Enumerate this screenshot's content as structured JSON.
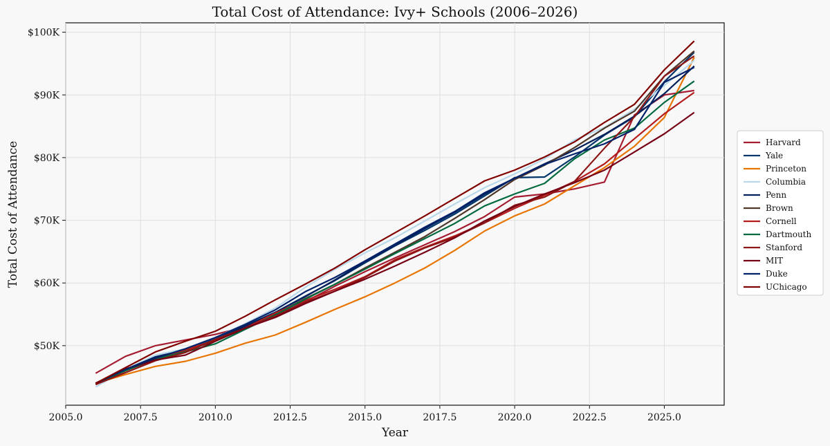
{
  "chart_data": {
    "type": "line",
    "title": "Total Cost of Attendance: Ivy+ Schools (2006–2026)",
    "xlabel": "Year",
    "ylabel": "Total Cost of Attendance",
    "xlim": [
      2005,
      2027
    ],
    "ylim": [
      40500,
      101500
    ],
    "x_ticks": [
      2005,
      2007.5,
      2010,
      2012.5,
      2015,
      2017.5,
      2020,
      2022.5,
      2025
    ],
    "x_tick_labels": [
      "2005.0",
      "2007.5",
      "2010.0",
      "2012.5",
      "2015.0",
      "2017.5",
      "2020.0",
      "2022.5",
      "2025.0"
    ],
    "y_ticks": [
      50000,
      60000,
      70000,
      80000,
      90000,
      100000
    ],
    "y_tick_labels": [
      "$50K",
      "$60K",
      "$70K",
      "$80K",
      "$90K",
      "$100K"
    ],
    "grid": true,
    "legend_position": "right",
    "x": [
      2006,
      2007,
      2008,
      2009,
      2010,
      2011,
      2012,
      2013,
      2014,
      2015,
      2016,
      2017,
      2018,
      2019,
      2020,
      2021,
      2022,
      2023,
      2024,
      2025,
      2026
    ],
    "series": [
      {
        "name": "Harvard",
        "color": "#a51c30",
        "values": [
          45600,
          48300,
          50000,
          50900,
          51800,
          53000,
          54800,
          57000,
          59500,
          61800,
          64000,
          66100,
          68200,
          70600,
          73700,
          74200,
          75000,
          76100,
          86800,
          90000,
          90700
        ]
      },
      {
        "name": "Yale",
        "color": "#00356b",
        "values": [
          44000,
          46200,
          48200,
          49400,
          51200,
          53200,
          55300,
          57900,
          60400,
          63200,
          65900,
          68400,
          71000,
          73900,
          76800,
          76900,
          80100,
          83600,
          86500,
          92100,
          96800
        ]
      },
      {
        "name": "Princeton",
        "color": "#e77500",
        "values": [
          44000,
          45400,
          46700,
          47500,
          48800,
          50400,
          51700,
          53700,
          55800,
          57800,
          60000,
          62400,
          65200,
          68300,
          70700,
          72600,
          75500,
          78400,
          81800,
          86400,
          96000
        ]
      },
      {
        "name": "Columbia",
        "color": "#b9d9eb",
        "values": [
          43400,
          46200,
          48500,
          49500,
          51300,
          53500,
          56000,
          59300,
          62200,
          64800,
          67200,
          69900,
          72600,
          75200,
          77400,
          79800,
          82800,
          84800,
          87700,
          91500,
          95500
        ]
      },
      {
        "name": "Penn",
        "color": "#011f5b",
        "values": [
          44000,
          46200,
          48200,
          49300,
          50900,
          53100,
          55300,
          57800,
          60500,
          63400,
          66000,
          68700,
          71300,
          74200,
          76700,
          79000,
          81200,
          83700,
          86600,
          90200,
          94600
        ]
      },
      {
        "name": "Brown",
        "color": "#4e3629",
        "values": [
          44000,
          46000,
          47800,
          49100,
          50800,
          52700,
          55000,
          57500,
          59800,
          62400,
          64900,
          67400,
          70300,
          73300,
          76500,
          78800,
          81600,
          84700,
          87400,
          93000,
          97000
        ]
      },
      {
        "name": "Cornell",
        "color": "#b31b1b",
        "values": [
          43800,
          46000,
          47900,
          49300,
          50900,
          52800,
          55200,
          57200,
          59000,
          61000,
          63700,
          65700,
          67500,
          69600,
          71900,
          74000,
          76200,
          79000,
          83000,
          87000,
          90400
        ]
      },
      {
        "name": "Dartmouth",
        "color": "#00693e",
        "values": [
          44000,
          46000,
          47900,
          49000,
          50300,
          52600,
          54900,
          57400,
          59800,
          62200,
          64700,
          67100,
          69500,
          72300,
          74200,
          75900,
          79800,
          82800,
          84700,
          88800,
          92200
        ]
      },
      {
        "name": "Stanford",
        "color": "#8c1515",
        "values": [
          43800,
          45700,
          47600,
          48900,
          51000,
          52800,
          54700,
          56900,
          58700,
          60900,
          63500,
          65600,
          67300,
          69600,
          72400,
          73700,
          76200,
          81500,
          86500,
          93000,
          96200
        ]
      },
      {
        "name": "MIT",
        "color": "#750014",
        "values": [
          44000,
          46300,
          47700,
          48500,
          50700,
          52800,
          54500,
          56700,
          58700,
          60600,
          62700,
          64900,
          67200,
          69900,
          72200,
          74200,
          76000,
          78000,
          80900,
          83800,
          87200
        ]
      },
      {
        "name": "Duke",
        "color": "#012169",
        "values": [
          44000,
          46200,
          48000,
          49500,
          51300,
          53400,
          55700,
          58600,
          60900,
          63500,
          66200,
          68900,
          71400,
          74400,
          76700,
          78900,
          80600,
          82200,
          84500,
          92000,
          94400
        ]
      },
      {
        "name": "UChicago",
        "color": "#800000",
        "values": [
          44000,
          46500,
          49000,
          50700,
          52300,
          54700,
          57300,
          59800,
          62400,
          65300,
          68000,
          70700,
          73500,
          76300,
          78000,
          80100,
          82500,
          85600,
          88500,
          94000,
          98600
        ]
      }
    ]
  }
}
